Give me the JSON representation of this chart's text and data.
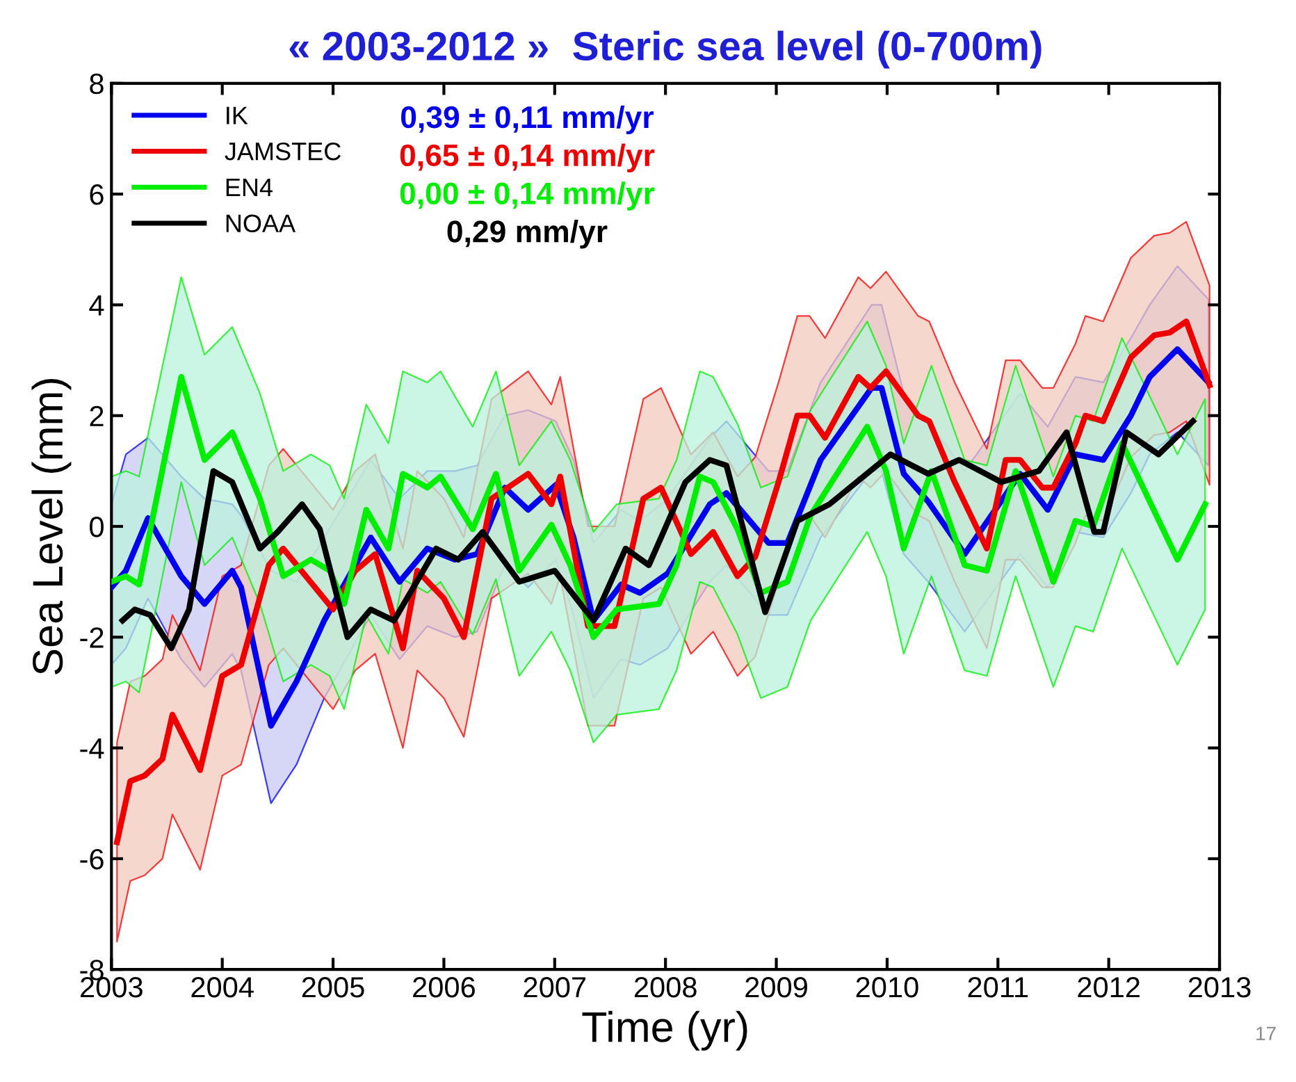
{
  "chart_data": {
    "type": "line",
    "title": "« 2003-2012 »  Steric sea level (0-700m)",
    "xlabel": "Time (yr)",
    "ylabel": "Sea Level (mm)",
    "xlim": [
      2003,
      2013
    ],
    "xticks": [
      2003,
      2004,
      2005,
      2006,
      2007,
      2008,
      2009,
      2010,
      2011,
      2012,
      2013
    ],
    "ylim": [
      -8,
      8
    ],
    "yticks": [
      -8,
      -6,
      -4,
      -2,
      0,
      2,
      4,
      6,
      8
    ],
    "grid": false,
    "legend": "top left",
    "marker": "none",
    "line_style": "solid",
    "annotations": [
      "0,39 ± 0,11 mm/yr",
      "0,65 ± 0,14 mm/yr",
      "0,00 ± 0,14 mm/yr",
      "0,29 mm/yr",
      "17"
    ],
    "series": [
      {
        "name": "IK",
        "color": "#0000ee",
        "x": [
          2003.0,
          2003.13,
          2003.33,
          2003.63,
          2003.84,
          2004.09,
          2004.17,
          2004.44,
          2004.67,
          2004.92,
          2005.34,
          2005.6,
          2005.85,
          2006.1,
          2006.3,
          2006.55,
          2006.76,
          2007.01,
          2007.17,
          2007.35,
          2007.6,
          2007.77,
          2008.02,
          2008.4,
          2008.55,
          2008.93,
          2009.1,
          2009.4,
          2009.86,
          2009.95,
          2010.15,
          2010.37,
          2010.7,
          2011.2,
          2011.45,
          2011.7,
          2011.95,
          2012.2,
          2012.37,
          2012.62,
          2012.9
        ],
        "values": [
          -1.1,
          -0.8,
          0.15,
          -0.9,
          -1.4,
          -0.8,
          -1.1,
          -3.6,
          -2.8,
          -1.7,
          -0.2,
          -1.0,
          -0.4,
          -0.6,
          -0.5,
          0.7,
          0.3,
          0.75,
          -0.2,
          -1.7,
          -1.05,
          -1.2,
          -0.85,
          0.4,
          0.6,
          -0.3,
          -0.3,
          1.2,
          2.5,
          2.5,
          0.95,
          0.45,
          -0.5,
          0.95,
          0.3,
          1.3,
          1.2,
          2.0,
          2.7,
          3.2,
          2.6
        ],
        "upper": [
          0.4,
          1.3,
          1.6,
          0.9,
          0.5,
          0.4,
          0.2,
          -0.8,
          -1.0,
          -0.2,
          1.2,
          0.5,
          1.0,
          1.0,
          1.1,
          2.0,
          2.1,
          1.9,
          1.2,
          -0.3,
          0.3,
          0.1,
          0.5,
          1.6,
          1.9,
          1.0,
          1.0,
          2.6,
          4.0,
          4.0,
          2.4,
          1.9,
          1.0,
          2.4,
          1.8,
          2.7,
          2.6,
          3.4,
          4.0,
          4.7,
          4.1
        ],
        "lower": [
          -2.5,
          -2.2,
          -1.3,
          -2.4,
          -2.9,
          -2.3,
          -2.6,
          -5.0,
          -4.3,
          -3.1,
          -1.6,
          -2.4,
          -1.8,
          -2.0,
          -1.9,
          -0.7,
          -1.1,
          -0.6,
          -1.6,
          -3.1,
          -2.4,
          -2.5,
          -2.2,
          -1.0,
          -0.7,
          -1.6,
          -1.6,
          -0.2,
          1.0,
          1.0,
          -0.5,
          -1.0,
          -1.9,
          -0.5,
          -1.1,
          -0.1,
          -0.2,
          0.6,
          1.3,
          1.7,
          1.1
        ]
      },
      {
        "name": "JAMSTEC",
        "color": "#ee0000",
        "x": [
          2003.05,
          2003.17,
          2003.3,
          2003.46,
          2003.55,
          2003.8,
          2004.0,
          2004.17,
          2004.42,
          2004.55,
          2005.0,
          2005.2,
          2005.38,
          2005.63,
          2005.76,
          2006.0,
          2006.18,
          2006.43,
          2006.76,
          2006.97,
          2007.05,
          2007.3,
          2007.54,
          2007.8,
          2007.96,
          2008.23,
          2008.43,
          2008.65,
          2008.81,
          2009.02,
          2009.19,
          2009.3,
          2009.44,
          2009.74,
          2009.85,
          2009.99,
          2010.28,
          2010.38,
          2010.61,
          2010.9,
          2011.07,
          2011.2,
          2011.4,
          2011.5,
          2011.7,
          2011.79,
          2011.95,
          2012.2,
          2012.41,
          2012.55,
          2012.7,
          2012.91
        ],
        "values": [
          -5.7,
          -4.6,
          -4.5,
          -4.2,
          -3.4,
          -4.4,
          -2.7,
          -2.5,
          -0.7,
          -0.4,
          -1.5,
          -0.8,
          -0.5,
          -2.2,
          -0.8,
          -1.3,
          -2.0,
          0.5,
          0.95,
          0.4,
          0.9,
          -1.8,
          -1.8,
          0.5,
          0.7,
          -0.5,
          -0.1,
          -0.9,
          -0.55,
          0.8,
          2.0,
          2.0,
          1.6,
          2.7,
          2.5,
          2.8,
          2.0,
          1.9,
          0.8,
          -0.4,
          1.2,
          1.2,
          0.7,
          0.7,
          1.5,
          2.0,
          1.9,
          3.05,
          3.45,
          3.5,
          3.7,
          2.55
        ],
        "upper": [
          -3.9,
          -2.8,
          -2.7,
          -2.4,
          -1.6,
          -2.6,
          -0.9,
          -0.7,
          1.1,
          1.4,
          0.3,
          1.0,
          1.3,
          -0.4,
          1.0,
          0.5,
          -0.2,
          2.3,
          2.8,
          2.2,
          2.7,
          0.0,
          0.0,
          2.3,
          2.5,
          1.3,
          1.7,
          0.9,
          1.25,
          2.6,
          3.8,
          3.8,
          3.4,
          4.5,
          4.3,
          4.6,
          3.8,
          3.7,
          2.6,
          1.4,
          3.0,
          3.0,
          2.5,
          2.5,
          3.3,
          3.8,
          3.7,
          4.85,
          5.25,
          5.3,
          5.5,
          4.35
        ],
        "lower": [
          -7.5,
          -6.4,
          -6.3,
          -6.0,
          -5.2,
          -6.2,
          -4.5,
          -4.3,
          -2.5,
          -2.2,
          -3.3,
          -2.6,
          -2.3,
          -4.0,
          -2.6,
          -3.1,
          -3.8,
          -1.3,
          -0.85,
          -1.4,
          -0.9,
          -3.6,
          -3.6,
          -1.3,
          -1.1,
          -2.3,
          -1.9,
          -2.7,
          -2.35,
          -1.0,
          0.2,
          0.2,
          -0.2,
          0.9,
          0.7,
          1.0,
          0.2,
          0.1,
          -1.0,
          -2.2,
          -0.6,
          -0.6,
          -1.1,
          -1.1,
          -0.3,
          0.2,
          0.1,
          1.25,
          1.65,
          1.7,
          1.9,
          0.75
        ]
      },
      {
        "name": "EN4",
        "color": "#00ee00",
        "x": [
          2003.0,
          2003.13,
          2003.25,
          2003.63,
          2003.84,
          2004.09,
          2004.34,
          2004.55,
          2004.8,
          2004.97,
          2005.1,
          2005.3,
          2005.5,
          2005.63,
          2005.85,
          2005.97,
          2006.26,
          2006.47,
          2006.68,
          2006.97,
          2007.14,
          2007.35,
          2007.56,
          2007.94,
          2008.1,
          2008.31,
          2008.43,
          2008.65,
          2008.86,
          2009.1,
          2009.31,
          2009.5,
          2009.82,
          2009.99,
          2010.15,
          2010.4,
          2010.7,
          2010.9,
          2011.16,
          2011.5,
          2011.7,
          2011.86,
          2012.12,
          2012.62,
          2012.87
        ],
        "values": [
          -1.0,
          -0.9,
          -1.05,
          2.7,
          1.2,
          1.7,
          0.5,
          -0.9,
          -0.6,
          -0.8,
          -1.4,
          0.3,
          -0.4,
          0.95,
          0.7,
          0.9,
          -0.05,
          0.95,
          -0.8,
          0.03,
          -0.7,
          -2.0,
          -1.5,
          -1.4,
          -0.7,
          0.9,
          0.8,
          -0.05,
          -1.2,
          -1.0,
          0.2,
          0.8,
          1.8,
          1.0,
          -0.4,
          1.0,
          -0.7,
          -0.8,
          1.0,
          -1.0,
          0.1,
          0.0,
          1.5,
          -0.6,
          0.4
        ],
        "upper": [
          0.9,
          1.0,
          0.9,
          4.5,
          3.1,
          3.6,
          2.4,
          1.0,
          1.3,
          1.1,
          0.5,
          2.2,
          1.5,
          2.8,
          2.6,
          2.8,
          1.8,
          2.8,
          1.1,
          1.9,
          1.2,
          -0.1,
          0.4,
          0.5,
          1.2,
          2.8,
          2.7,
          1.85,
          0.7,
          0.9,
          2.1,
          2.7,
          3.7,
          2.9,
          1.5,
          2.9,
          1.2,
          1.1,
          2.9,
          0.9,
          2.0,
          1.9,
          3.4,
          1.3,
          2.3
        ],
        "lower": [
          -2.9,
          -2.8,
          -3.0,
          0.8,
          -0.7,
          -0.2,
          -1.4,
          -2.8,
          -2.5,
          -2.7,
          -3.3,
          -1.6,
          -2.3,
          -0.95,
          -1.2,
          -1.0,
          -1.95,
          -0.95,
          -2.7,
          -1.9,
          -2.6,
          -3.9,
          -3.4,
          -3.3,
          -2.6,
          -1.0,
          -1.1,
          -1.95,
          -3.1,
          -2.9,
          -1.7,
          -1.1,
          -0.1,
          -0.9,
          -2.3,
          -0.9,
          -2.6,
          -2.7,
          -0.9,
          -2.9,
          -1.8,
          -1.9,
          -0.4,
          -2.5,
          -1.5
        ]
      },
      {
        "name": "NOAA",
        "color": "#000000",
        "x": [
          2003.1,
          2003.21,
          2003.35,
          2003.54,
          2003.7,
          2003.92,
          2004.09,
          2004.34,
          2004.5,
          2004.72,
          2004.88,
          2005.13,
          2005.34,
          2005.55,
          2005.93,
          2006.13,
          2006.35,
          2006.68,
          2007.0,
          2007.35,
          2007.64,
          2007.85,
          2008.18,
          2008.4,
          2008.55,
          2008.9,
          2009.19,
          2009.48,
          2010.03,
          2010.37,
          2010.65,
          2011.03,
          2011.37,
          2011.62,
          2011.87,
          2011.95,
          2012.16,
          2012.45,
          2012.76
        ],
        "values": [
          -1.7,
          -1.5,
          -1.6,
          -2.2,
          -1.5,
          1.0,
          0.8,
          -0.4,
          -0.1,
          0.4,
          -0.05,
          -2.0,
          -1.5,
          -1.7,
          -0.4,
          -0.6,
          -0.1,
          -1.0,
          -0.8,
          -1.7,
          -0.4,
          -0.7,
          0.8,
          1.2,
          1.1,
          -1.55,
          0.1,
          0.4,
          1.3,
          0.95,
          1.2,
          0.8,
          1.0,
          1.7,
          -0.1,
          -0.1,
          1.7,
          1.3,
          1.9
        ]
      }
    ]
  }
}
